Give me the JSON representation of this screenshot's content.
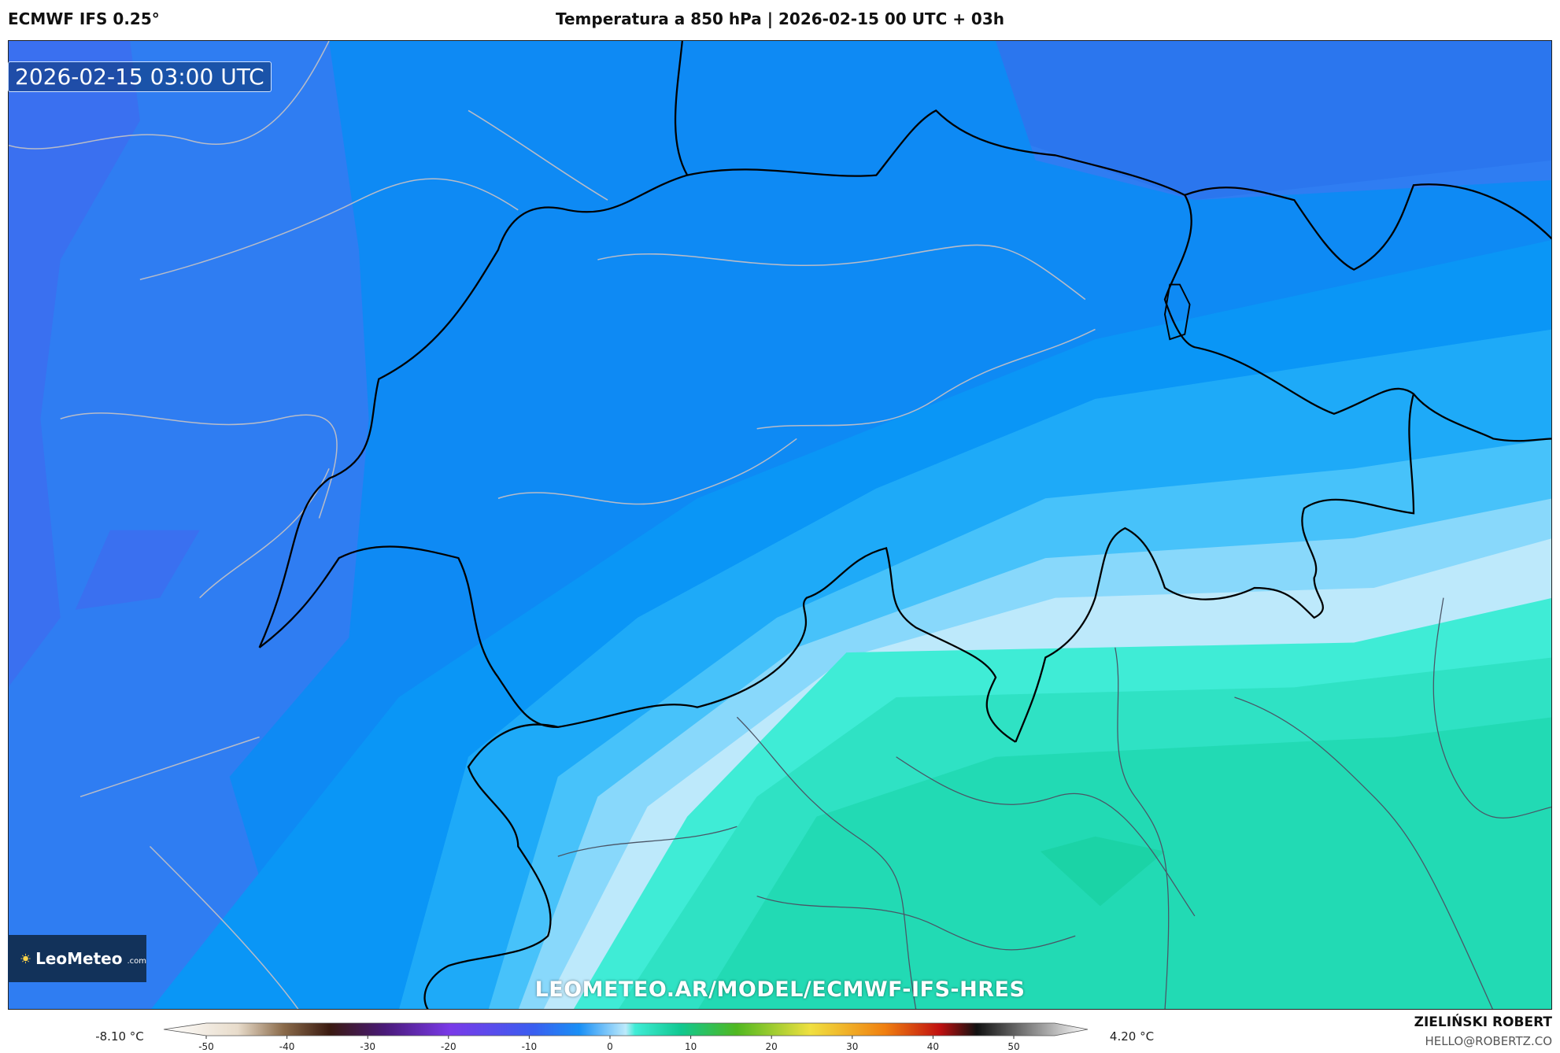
{
  "header": {
    "model": "ECMWF IFS 0.25°",
    "title": "Temperatura a 850 hPa | 2026-02-15 00 UTC + 03h"
  },
  "map": {
    "timestamp": "2026-02-15 03:00 UTC",
    "logo_name": "LeoMeteo",
    "logo_suffix": ".com",
    "watermark": "LEOMETEO.AR/MODEL/ECMWF-IFS-HRES"
  },
  "legend": {
    "min_label": "-8.10 °C",
    "max_label": "4.20 °C",
    "ticks": [
      -50,
      -40,
      -30,
      -20,
      -10,
      0,
      10,
      20,
      30,
      40,
      50
    ]
  },
  "footer": {
    "author": "ZIELIŃSKI ROBERT",
    "email": "HELLO@ROBERTZ.CO"
  }
}
